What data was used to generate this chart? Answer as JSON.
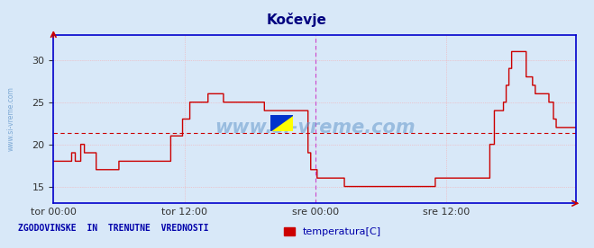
{
  "title": "Kočevje",
  "title_color": "#000080",
  "title_fontsize": 11,
  "ylim": [
    13,
    33
  ],
  "yticks": [
    15,
    20,
    25,
    30
  ],
  "bg_color": "#d8e8f8",
  "plot_bg_color": "#d8e8f8",
  "line_color": "#cc0000",
  "avg_line_color": "#cc0000",
  "avg_line_value": 21.3,
  "grid_color": "#ff9999",
  "vline_color": "#cc44cc",
  "axis_color": "#0000cc",
  "watermark": "www.si-vreme.com",
  "watermark_color": "#6699cc",
  "sidebar_text": "www.si-vreme.com",
  "footer_text": "ZGODOVINSKE  IN  TRENUTNE  VREDNOSTI",
  "footer_color": "#0000aa",
  "legend_label": "temperatura[C]",
  "legend_color": "#cc0000",
  "x_tick_labels": [
    "tor 00:00",
    "tor 12:00",
    "sre 00:00",
    "sre 12:00"
  ],
  "x_tick_positions": [
    0,
    144,
    288,
    432
  ],
  "total_points": 576,
  "vline_positions": [
    288,
    575
  ],
  "temperature_data": [
    18,
    18,
    18,
    18,
    18,
    18,
    18,
    18,
    18,
    18,
    18,
    18,
    18,
    18,
    18,
    18,
    18,
    18,
    18,
    18,
    19,
    19,
    19,
    19,
    18,
    18,
    18,
    18,
    18,
    18,
    20,
    20,
    20,
    20,
    19,
    19,
    19,
    19,
    19,
    19,
    19,
    19,
    19,
    19,
    19,
    19,
    19,
    17,
    17,
    17,
    17,
    17,
    17,
    17,
    17,
    17,
    17,
    17,
    17,
    17,
    17,
    17,
    17,
    17,
    17,
    17,
    17,
    17,
    17,
    17,
    17,
    17,
    18,
    18,
    18,
    18,
    18,
    18,
    18,
    18,
    18,
    18,
    18,
    18,
    18,
    18,
    18,
    18,
    18,
    18,
    18,
    18,
    18,
    18,
    18,
    18,
    18,
    18,
    18,
    18,
    18,
    18,
    18,
    18,
    18,
    18,
    18,
    18,
    18,
    18,
    18,
    18,
    18,
    18,
    18,
    18,
    18,
    18,
    18,
    18,
    18,
    18,
    18,
    18,
    18,
    18,
    18,
    18,
    18,
    21,
    21,
    21,
    21,
    21,
    21,
    21,
    21,
    21,
    21,
    21,
    21,
    21,
    23,
    23,
    23,
    23,
    23,
    23,
    23,
    23,
    25,
    25,
    25,
    25,
    25,
    25,
    25,
    25,
    25,
    25,
    25,
    25,
    25,
    25,
    25,
    25,
    25,
    25,
    25,
    25,
    26,
    26,
    26,
    26,
    26,
    26,
    26,
    26,
    26,
    26,
    26,
    26,
    26,
    26,
    26,
    26,
    26,
    25,
    25,
    25,
    25,
    25,
    25,
    25,
    25,
    25,
    25,
    25,
    25,
    25,
    25,
    25,
    25,
    25,
    25,
    25,
    25,
    25,
    25,
    25,
    25,
    25,
    25,
    25,
    25,
    25,
    25,
    25,
    25,
    25,
    25,
    25,
    25,
    25,
    25,
    25,
    25,
    25,
    25,
    25,
    25,
    25,
    24,
    24,
    24,
    24,
    24,
    24,
    24,
    24,
    24,
    24,
    24,
    24,
    24,
    24,
    24,
    24,
    24,
    24,
    24,
    24,
    24,
    24,
    24,
    24,
    24,
    24,
    24,
    24,
    24,
    24,
    24,
    24,
    24,
    24,
    24,
    24,
    24,
    24,
    24,
    24,
    24,
    24,
    24,
    24,
    24,
    24,
    24,
    24,
    19,
    19,
    19,
    17,
    17,
    17,
    17,
    17,
    17,
    17,
    16,
    16,
    16,
    16,
    16,
    16,
    16,
    16,
    16,
    16,
    16,
    16,
    16,
    16,
    16,
    16,
    16,
    16,
    16,
    16,
    16,
    16,
    16,
    16,
    16,
    16,
    16,
    16,
    16,
    16,
    15,
    15,
    15,
    15,
    15,
    15,
    15,
    15,
    15,
    15,
    15,
    15,
    15,
    15,
    15,
    15,
    15,
    15,
    15,
    15,
    15,
    15,
    15,
    15,
    15,
    15,
    15,
    15,
    15,
    15,
    15,
    15,
    15,
    15,
    15,
    15,
    15,
    15,
    15,
    15,
    15,
    15,
    15,
    15,
    15,
    15,
    15,
    15,
    15,
    15,
    15,
    15,
    15,
    15,
    15,
    15,
    15,
    15,
    15,
    15,
    15,
    15,
    15,
    15,
    15,
    15,
    15,
    15,
    15,
    15,
    15,
    15,
    15,
    15,
    15,
    15,
    15,
    15,
    15,
    15,
    15,
    15,
    15,
    15,
    15,
    15,
    15,
    15,
    15,
    15,
    15,
    15,
    15,
    15,
    15,
    15,
    15,
    15,
    15,
    15,
    16,
    16,
    16,
    16,
    16,
    16,
    16,
    16,
    16,
    16,
    16,
    16,
    16,
    16,
    16,
    16,
    16,
    16,
    16,
    16,
    16,
    16,
    16,
    16,
    16,
    16,
    16,
    16,
    16,
    16,
    16,
    16,
    16,
    16,
    16,
    16,
    16,
    16,
    16,
    16,
    16,
    16,
    16,
    16,
    16,
    16,
    16,
    16,
    16,
    16,
    16,
    16,
    16,
    16,
    16,
    16,
    16,
    16,
    16,
    16,
    20,
    20,
    20,
    20,
    20,
    24,
    24,
    24,
    24,
    24,
    24,
    24,
    24,
    24,
    24,
    25,
    25,
    25,
    27,
    27,
    27,
    29,
    29,
    29,
    31,
    31,
    31,
    31,
    31,
    31,
    31,
    31,
    31,
    31,
    31,
    31,
    31,
    31,
    31,
    31,
    28,
    28,
    28,
    28,
    28,
    28,
    28,
    27,
    27,
    27,
    26,
    26,
    26,
    26,
    26,
    26,
    26,
    26,
    26,
    26,
    26,
    26,
    26,
    26,
    26,
    25,
    25,
    25,
    25,
    25,
    23,
    23,
    23,
    22,
    22,
    22,
    22,
    22,
    22,
    22,
    22,
    22,
    22,
    22,
    22,
    22,
    22,
    22,
    22,
    22,
    22,
    22,
    22,
    22,
    22,
    22
  ]
}
